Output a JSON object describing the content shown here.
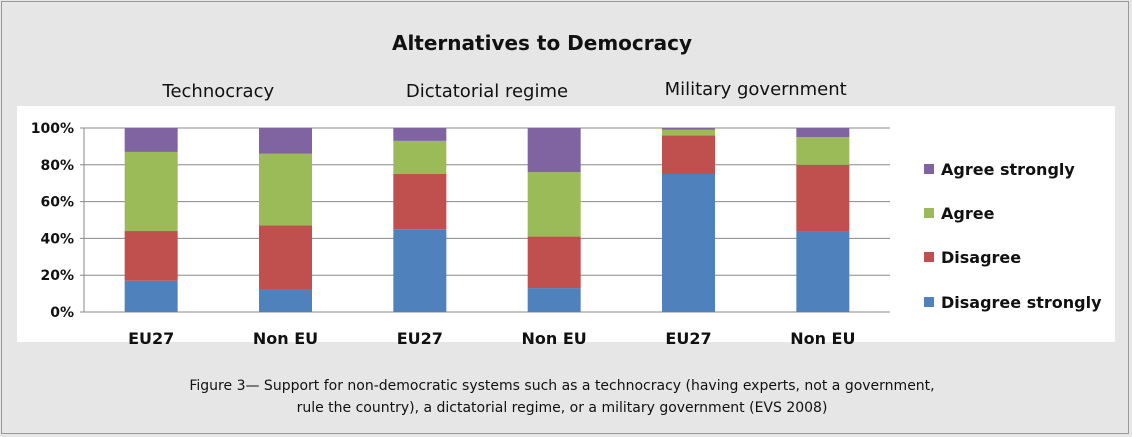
{
  "chart_data": {
    "type": "bar",
    "stacked": true,
    "title": "Alternatives to Democracy",
    "groups": [
      "Technocracy",
      "Dictatorial regime",
      "Military government"
    ],
    "categories": [
      "EU27",
      "Non EU",
      "EU27",
      "Non EU",
      "EU27",
      "Non EU"
    ],
    "category_group": [
      0,
      0,
      1,
      1,
      2,
      2
    ],
    "series": [
      {
        "name": "Disagree strongly",
        "color": "#4f81bd",
        "values": [
          17,
          12,
          45,
          13,
          75,
          44
        ]
      },
      {
        "name": "Disagree",
        "color": "#c0504d",
        "values": [
          27,
          35,
          30,
          28,
          21,
          36
        ]
      },
      {
        "name": "Agree",
        "color": "#9bbb59",
        "values": [
          43,
          39,
          18,
          35,
          3,
          15
        ]
      },
      {
        "name": "Agree strongly",
        "color": "#8064a2",
        "values": [
          13,
          14,
          7,
          24,
          1,
          5
        ]
      }
    ],
    "yticks": [
      "0%",
      "20%",
      "40%",
      "60%",
      "80%",
      "100%"
    ],
    "ylim": [
      0,
      100
    ],
    "grid": true,
    "legend_position": "right",
    "caption_lines": [
      "Figure 3— Support for non-democratic systems such as a technocracy (having experts, not a government,",
      "rule the country), a dictatorial regime, or a military government (EVS 2008)"
    ]
  }
}
